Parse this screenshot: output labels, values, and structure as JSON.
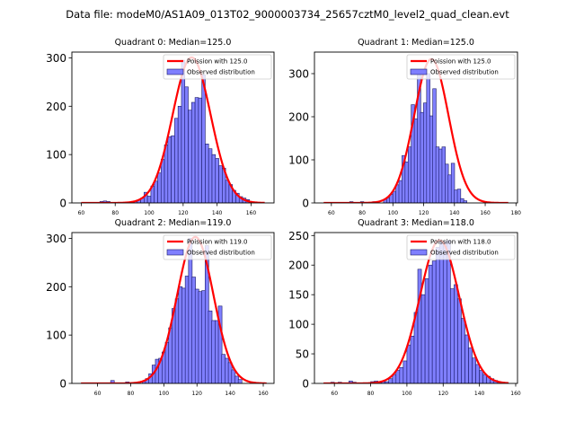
{
  "figure": {
    "suptitle": "Data file: modeM0/AS1A09_013T02_9000003734_25657cztM0_level2_quad_clean.evt"
  },
  "colors": {
    "bar_fill": "#7f7fff",
    "bar_edge": "#1a1a66",
    "curve": "#ff0000"
  },
  "chart_data": [
    {
      "type": "bar",
      "title": "Quadrant 0: Median=125.0",
      "xlabel": "",
      "ylabel": "",
      "xlim": [
        54.5,
        173.5
      ],
      "ylim": [
        0,
        312
      ],
      "xticks": [
        60,
        80,
        100,
        120,
        140,
        160
      ],
      "yticks": [
        0,
        100,
        200,
        300
      ],
      "legend": {
        "placement": "top-right",
        "entries": [
          "Poission with 125.0",
          "Observed distribution"
        ]
      },
      "bin_width": 2,
      "bins": [
        [
          72,
          3
        ],
        [
          74,
          4
        ],
        [
          76,
          3
        ],
        [
          88,
          1
        ],
        [
          90,
          2
        ],
        [
          92,
          3
        ],
        [
          94,
          6
        ],
        [
          96,
          10
        ],
        [
          98,
          22
        ],
        [
          100,
          14
        ],
        [
          102,
          35
        ],
        [
          104,
          45
        ],
        [
          106,
          62
        ],
        [
          108,
          90
        ],
        [
          110,
          120
        ],
        [
          112,
          137
        ],
        [
          114,
          139
        ],
        [
          116,
          175
        ],
        [
          118,
          200
        ],
        [
          120,
          295
        ],
        [
          122,
          240
        ],
        [
          124,
          192
        ],
        [
          126,
          208
        ],
        [
          128,
          218
        ],
        [
          130,
          217
        ],
        [
          132,
          265
        ],
        [
          134,
          122
        ],
        [
          136,
          112
        ],
        [
          138,
          100
        ],
        [
          140,
          92
        ],
        [
          142,
          77
        ],
        [
          144,
          72
        ],
        [
          146,
          47
        ],
        [
          148,
          38
        ],
        [
          150,
          26
        ],
        [
          152,
          20
        ],
        [
          154,
          13
        ],
        [
          156,
          10
        ],
        [
          158,
          7
        ]
      ],
      "curve": {
        "name": "Poission with 125.0",
        "mean": 125.0,
        "peak": 301,
        "x_range": [
          60,
          168
        ]
      }
    },
    {
      "type": "bar",
      "title": "Quadrant 1: Median=125.0",
      "xlabel": "",
      "ylabel": "",
      "xlim": [
        49,
        181
      ],
      "ylim": [
        0,
        350
      ],
      "xticks": [
        60,
        80,
        100,
        120,
        140,
        160,
        180
      ],
      "yticks": [
        0,
        100,
        200,
        300
      ],
      "legend": {
        "placement": "top-right",
        "entries": [
          "Poission with 125.0",
          "Observed distribution"
        ]
      },
      "bin_width": 2.2,
      "bins": [
        [
          73,
          3
        ],
        [
          80,
          3
        ],
        [
          88,
          3
        ],
        [
          95,
          8
        ],
        [
          97,
          11
        ],
        [
          99,
          20
        ],
        [
          101,
          27
        ],
        [
          103,
          42
        ],
        [
          105,
          52
        ],
        [
          107,
          110
        ],
        [
          109,
          95
        ],
        [
          111,
          130
        ],
        [
          113,
          228
        ],
        [
          115,
          195
        ],
        [
          117,
          300
        ],
        [
          119,
          210
        ],
        [
          121,
          232
        ],
        [
          123,
          300
        ],
        [
          125,
          202
        ],
        [
          127,
          265
        ],
        [
          129,
          130
        ],
        [
          131,
          125
        ],
        [
          133,
          130
        ],
        [
          135,
          90
        ],
        [
          137,
          65
        ],
        [
          139,
          92
        ],
        [
          141,
          30
        ],
        [
          143,
          32
        ],
        [
          145,
          10
        ],
        [
          147,
          5
        ]
      ],
      "curve": {
        "name": "Poission with 125.0",
        "mean": 125.0,
        "peak": 334,
        "x_range": [
          55,
          175
        ]
      }
    },
    {
      "type": "bar",
      "title": "Quadrant 2: Median=119.0",
      "xlabel": "",
      "ylabel": "",
      "xlim": [
        44.5,
        166.5
      ],
      "ylim": [
        0,
        312
      ],
      "xticks": [
        60,
        80,
        100,
        120,
        140,
        160
      ],
      "yticks": [
        0,
        100,
        200,
        300
      ],
      "legend": {
        "placement": "top-right",
        "entries": [
          "Poission with 119.0",
          "Observed distribution"
        ]
      },
      "bin_width": 2.2,
      "bins": [
        [
          69,
          6
        ],
        [
          78,
          3
        ],
        [
          88,
          5
        ],
        [
          90,
          10
        ],
        [
          92,
          20
        ],
        [
          94,
          38
        ],
        [
          96,
          50
        ],
        [
          98,
          52
        ],
        [
          100,
          65
        ],
        [
          102,
          85
        ],
        [
          104,
          115
        ],
        [
          106,
          155
        ],
        [
          108,
          175
        ],
        [
          110,
          200
        ],
        [
          112,
          197
        ],
        [
          114,
          222
        ],
        [
          116,
          300
        ],
        [
          118,
          220
        ],
        [
          120,
          195
        ],
        [
          122,
          190
        ],
        [
          124,
          192
        ],
        [
          126,
          285
        ],
        [
          128,
          150
        ],
        [
          130,
          130
        ],
        [
          132,
          130
        ],
        [
          134,
          160
        ],
        [
          136,
          60
        ],
        [
          138,
          52
        ],
        [
          140,
          43
        ],
        [
          142,
          28
        ],
        [
          144,
          15
        ],
        [
          146,
          8
        ]
      ],
      "curve": {
        "name": "Poission with 119.0",
        "mean": 119.0,
        "peak": 303,
        "x_range": [
          50,
          162
        ]
      }
    },
    {
      "type": "bar",
      "title": "Quadrant 3: Median=118.0",
      "xlabel": "",
      "ylabel": "",
      "xlim": [
        49,
        161
      ],
      "ylim": [
        0,
        255
      ],
      "xticks": [
        60,
        80,
        100,
        120,
        140,
        160
      ],
      "yticks": [
        0,
        50,
        100,
        150,
        200,
        250
      ],
      "legend": {
        "placement": "top-right",
        "entries": [
          "Poission with 118.0",
          "Observed distribution"
        ]
      },
      "bin_width": 2,
      "bins": [
        [
          59,
          2
        ],
        [
          63,
          2
        ],
        [
          69,
          4
        ],
        [
          71,
          2
        ],
        [
          81,
          3
        ],
        [
          83,
          4
        ],
        [
          85,
          3
        ],
        [
          87,
          3
        ],
        [
          89,
          3
        ],
        [
          91,
          8
        ],
        [
          93,
          15
        ],
        [
          95,
          22
        ],
        [
          97,
          27
        ],
        [
          99,
          38
        ],
        [
          101,
          65
        ],
        [
          103,
          80
        ],
        [
          105,
          120
        ],
        [
          107,
          193
        ],
        [
          109,
          150
        ],
        [
          111,
          177
        ],
        [
          113,
          200
        ],
        [
          115,
          207
        ],
        [
          117,
          230
        ],
        [
          119,
          240
        ],
        [
          121,
          240
        ],
        [
          123,
          242
        ],
        [
          125,
          160
        ],
        [
          127,
          167
        ],
        [
          129,
          143
        ],
        [
          131,
          110
        ],
        [
          133,
          82
        ],
        [
          135,
          60
        ],
        [
          137,
          43
        ],
        [
          139,
          32
        ],
        [
          141,
          22
        ],
        [
          143,
          15
        ],
        [
          145,
          12
        ],
        [
          147,
          8
        ],
        [
          149,
          5
        ],
        [
          151,
          3
        ],
        [
          153,
          2
        ],
        [
          155,
          1
        ]
      ],
      "curve": {
        "name": "Poission with 118.0",
        "mean": 118.0,
        "peak": 242,
        "x_range": [
          54,
          156
        ]
      }
    }
  ]
}
